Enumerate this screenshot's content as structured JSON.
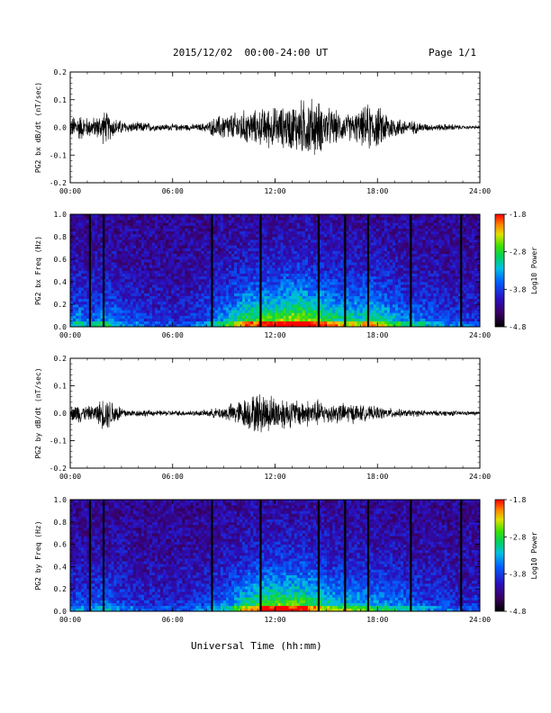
{
  "header": {
    "title": "2015/12/02  00:00-24:00 UT",
    "page": "Page 1/1"
  },
  "xlabel": "Universal Time (hh:mm)",
  "chart_data": [
    {
      "type": "line",
      "ylabel": "PG2 bx dB/dt (nT/sec)",
      "xlim_hours": [
        0,
        24
      ],
      "ylim": [
        -0.2,
        0.2
      ],
      "yticks": [
        "0.2",
        "0.1",
        "0.0",
        "-0.1",
        "-0.2"
      ],
      "xticks": [
        "00:00",
        "06:00",
        "12:00",
        "18:00",
        "24:00"
      ],
      "series": [
        {
          "x_hours": [
            0,
            0.5,
            1,
            1.5,
            2,
            2.5,
            3,
            3.5,
            4,
            4.5,
            5,
            5.5,
            6,
            6.5,
            7,
            7.5,
            8,
            8.5,
            9,
            9.5,
            10,
            10.5,
            11,
            11.5,
            12,
            12.5,
            13,
            13.5,
            14,
            14.5,
            15,
            15.5,
            16,
            16.5,
            17,
            17.5,
            18,
            18.5,
            19,
            19.5,
            20,
            20.5,
            21,
            21.5,
            22,
            22.5,
            23,
            23.5,
            24
          ],
          "amplitude": [
            0.03,
            0.04,
            0.03,
            0.03,
            0.05,
            0.03,
            0.02,
            0.015,
            0.015,
            0.015,
            0.01,
            0.01,
            0.01,
            0.01,
            0.01,
            0.01,
            0.015,
            0.03,
            0.04,
            0.04,
            0.05,
            0.05,
            0.05,
            0.06,
            0.06,
            0.06,
            0.07,
            0.08,
            0.09,
            0.08,
            0.06,
            0.05,
            0.04,
            0.04,
            0.05,
            0.07,
            0.06,
            0.05,
            0.03,
            0.025,
            0.02,
            0.015,
            0.01,
            0.01,
            0.01,
            0.01,
            0.005,
            0.005,
            0.005
          ]
        }
      ]
    },
    {
      "type": "heatmap",
      "ylabel": "PG2 bx Freq (Hz)",
      "xlim_hours": [
        0,
        24
      ],
      "ylim": [
        0.0,
        1.0
      ],
      "yticks": [
        "1.0",
        "0.8",
        "0.6",
        "0.4",
        "0.2",
        "0.0"
      ],
      "xticks": [
        "00:00",
        "06:00",
        "12:00",
        "18:00",
        "24:00"
      ],
      "colorbar": {
        "label": "Log10 Power",
        "ticks": [
          "-1.8",
          "-2.8",
          "-3.8",
          "-4.8"
        ],
        "range": [
          -4.8,
          -1.8
        ]
      },
      "gap_times_hours": [
        1.15,
        1.95,
        8.3,
        11.15,
        14.55,
        16.1,
        17.45,
        19.95,
        22.9
      ],
      "activity_profile": [
        0.25,
        0.35,
        0.25,
        0.3,
        0.35,
        0.3,
        0.25,
        0.2,
        0.2,
        0.15,
        0.15,
        0.15,
        0.15,
        0.15,
        0.15,
        0.2,
        0.25,
        0.3,
        0.35,
        0.45,
        0.55,
        0.6,
        0.6,
        0.65,
        0.65,
        0.7,
        0.75,
        0.75,
        0.7,
        0.65,
        0.6,
        0.55,
        0.5,
        0.5,
        0.5,
        0.55,
        0.5,
        0.45,
        0.4,
        0.35,
        0.3,
        0.3,
        0.25,
        0.25,
        0.2,
        0.2,
        0.2,
        0.15,
        0.15
      ]
    },
    {
      "type": "line",
      "ylabel": "PG2 by dB/dt (nT/sec)",
      "xlim_hours": [
        0,
        24
      ],
      "ylim": [
        -0.2,
        0.2
      ],
      "yticks": [
        "0.2",
        "0.1",
        "0.0",
        "-0.1",
        "-0.2"
      ],
      "xticks": [
        "00:00",
        "06:00",
        "12:00",
        "18:00",
        "24:00"
      ],
      "series": [
        {
          "x_hours": [
            0,
            0.5,
            1,
            1.5,
            2,
            2.5,
            3,
            3.5,
            4,
            4.5,
            5,
            5.5,
            6,
            6.5,
            7,
            7.5,
            8,
            8.5,
            9,
            9.5,
            10,
            10.5,
            11,
            11.5,
            12,
            12.5,
            13,
            13.5,
            14,
            14.5,
            15,
            15.5,
            16,
            16.5,
            17,
            17.5,
            18,
            18.5,
            19,
            19.5,
            20,
            20.5,
            21,
            21.5,
            22,
            22.5,
            23,
            23.5,
            24
          ],
          "amplitude": [
            0.02,
            0.03,
            0.02,
            0.025,
            0.05,
            0.04,
            0.02,
            0.01,
            0.01,
            0.01,
            0.008,
            0.008,
            0.008,
            0.008,
            0.008,
            0.008,
            0.01,
            0.015,
            0.02,
            0.03,
            0.04,
            0.05,
            0.06,
            0.06,
            0.05,
            0.05,
            0.04,
            0.04,
            0.04,
            0.04,
            0.03,
            0.03,
            0.03,
            0.03,
            0.025,
            0.02,
            0.02,
            0.015,
            0.015,
            0.01,
            0.01,
            0.01,
            0.008,
            0.008,
            0.008,
            0.008,
            0.006,
            0.006,
            0.006
          ]
        }
      ]
    },
    {
      "type": "heatmap",
      "ylabel": "PG2 by Freq (Hz)",
      "xlim_hours": [
        0,
        24
      ],
      "ylim": [
        0.0,
        1.0
      ],
      "yticks": [
        "1.0",
        "0.8",
        "0.6",
        "0.4",
        "0.2",
        "0.0"
      ],
      "xticks": [
        "00:00",
        "06:00",
        "12:00",
        "18:00",
        "24:00"
      ],
      "colorbar": {
        "label": "Log10 Power",
        "ticks": [
          "-1.8",
          "-2.8",
          "-3.8",
          "-4.8"
        ],
        "range": [
          -4.8,
          -1.8
        ]
      },
      "gap_times_hours": [
        1.15,
        1.95,
        8.3,
        11.15,
        14.55,
        16.1,
        17.45,
        19.95,
        22.9
      ],
      "activity_profile": [
        0.2,
        0.25,
        0.2,
        0.25,
        0.3,
        0.25,
        0.2,
        0.2,
        0.15,
        0.15,
        0.15,
        0.15,
        0.15,
        0.15,
        0.15,
        0.2,
        0.2,
        0.25,
        0.3,
        0.35,
        0.45,
        0.55,
        0.6,
        0.65,
        0.65,
        0.65,
        0.65,
        0.65,
        0.6,
        0.55,
        0.5,
        0.45,
        0.45,
        0.45,
        0.4,
        0.4,
        0.35,
        0.35,
        0.3,
        0.3,
        0.25,
        0.25,
        0.2,
        0.2,
        0.2,
        0.15,
        0.15,
        0.15,
        0.15
      ]
    }
  ]
}
